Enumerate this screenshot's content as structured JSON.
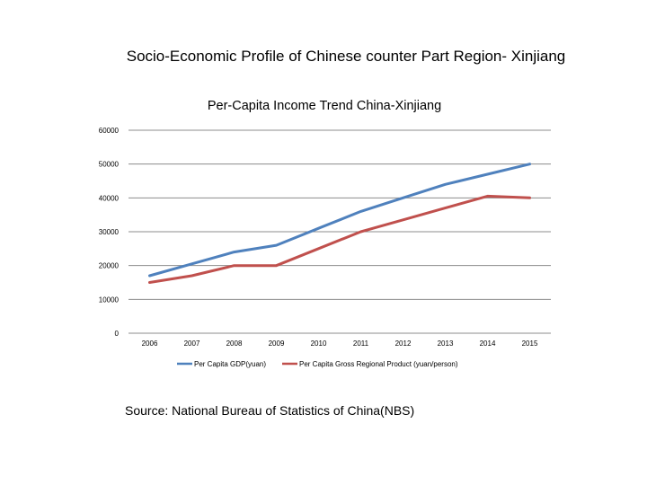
{
  "slide": {
    "title": "Socio-Economic Profile of Chinese counter Part Region- Xinjiang",
    "source": "Source: National Bureau of Statistics of China(NBS)"
  },
  "chart_data": {
    "type": "line",
    "title": "Per-Capita Income Trend China-Xinjiang",
    "xlabel": "",
    "ylabel": "",
    "categories": [
      "2006",
      "2007",
      "2008",
      "2009",
      "2010",
      "2011",
      "2012",
      "2013",
      "2014",
      "2015"
    ],
    "ylim": [
      0,
      60000
    ],
    "yticks": [
      0,
      10000,
      20000,
      30000,
      40000,
      50000,
      60000
    ],
    "grid": true,
    "legend": "bottom",
    "series": [
      {
        "name": "Per Capita GDP(yuan)",
        "color": "#4F81BD",
        "values": [
          17000,
          20500,
          24000,
          26000,
          31000,
          36000,
          40000,
          44000,
          47000,
          50000
        ]
      },
      {
        "name": "Per Capita Gross Regional Product (yuan/person)",
        "color": "#C0504D",
        "values": [
          15000,
          17000,
          20000,
          20000,
          25000,
          30000,
          33500,
          37000,
          40500,
          40000
        ]
      }
    ]
  }
}
